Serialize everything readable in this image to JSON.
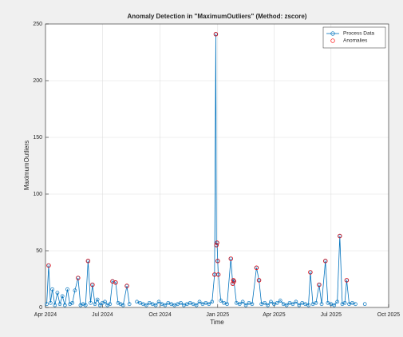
{
  "chart_data": {
    "type": "line",
    "title": "Anomaly Detection in \"MaximumOutliers\" (Method: zscore)",
    "x_label": "Time",
    "y_label": "MaximumOutliers",
    "xlim": [
      0,
      548
    ],
    "xticks": [
      {
        "value": 0,
        "label": "Apr 2024"
      },
      {
        "value": 91,
        "label": "Jul 2024"
      },
      {
        "value": 183,
        "label": "Oct 2024"
      },
      {
        "value": 275,
        "label": "Jan 2025"
      },
      {
        "value": 365,
        "label": "Apr 2025"
      },
      {
        "value": 456,
        "label": "Jul 2025"
      },
      {
        "value": 548,
        "label": "Oct 2025"
      }
    ],
    "ylim": [
      0,
      250
    ],
    "yticks": [
      0,
      50,
      100,
      150,
      200,
      250
    ],
    "grid": true,
    "legend": "northeast",
    "series": [
      {
        "name": "Process Data",
        "color": "#0072bd",
        "style": "line-marker",
        "x": [
          2,
          5,
          8,
          11,
          15,
          19,
          23,
          27,
          31,
          35,
          39,
          43,
          47,
          52,
          56,
          60,
          64,
          68,
          72,
          75,
          79,
          83,
          87,
          91,
          95,
          99,
          103,
          107,
          112,
          116,
          120,
          124,
          130,
          134,
          140,
          146,
          151,
          156,
          161,
          166,
          171,
          176,
          181,
          186,
          191,
          196,
          201,
          206,
          211,
          216,
          221,
          226,
          231,
          236,
          241,
          246,
          251,
          256,
          261,
          266,
          270,
          272,
          273,
          274,
          275,
          276,
          280,
          285,
          290,
          296,
          299,
          300,
          301,
          305,
          310,
          315,
          320,
          325,
          330,
          337,
          341,
          345,
          350,
          355,
          360,
          365,
          370,
          375,
          380,
          385,
          390,
          395,
          400,
          405,
          410,
          415,
          420,
          423,
          427,
          432,
          437,
          441,
          447,
          451,
          456,
          461,
          466,
          470,
          474,
          478,
          481,
          485,
          490,
          495,
          502,
          510
        ],
        "values": [
          3,
          37,
          4,
          16,
          2,
          13,
          3,
          10,
          2,
          16,
          3,
          4,
          15,
          26,
          2,
          3,
          2,
          41,
          4,
          20,
          3,
          7,
          2,
          4,
          5,
          2,
          3,
          23,
          22,
          4,
          3,
          2,
          19,
          3,
          null,
          5,
          4,
          3,
          2,
          4,
          3,
          2,
          5,
          3,
          2,
          4,
          3,
          2,
          3,
          4,
          2,
          3,
          4,
          3,
          2,
          5,
          3,
          4,
          3,
          5,
          29,
          241,
          55,
          57,
          41,
          29,
          6,
          4,
          3,
          43,
          21,
          24,
          23,
          4,
          3,
          5,
          2,
          4,
          3,
          35,
          24,
          3,
          4,
          2,
          5,
          3,
          4,
          6,
          3,
          2,
          4,
          3,
          5,
          2,
          4,
          3,
          2,
          31,
          3,
          4,
          20,
          3,
          41,
          4,
          3,
          2,
          5,
          63,
          3,
          4,
          24,
          3,
          4,
          3,
          null,
          3
        ]
      },
      {
        "name": "Anomalies",
        "color": "#ff0000",
        "style": "marker",
        "x": [
          5,
          52,
          68,
          75,
          107,
          112,
          130,
          270,
          272,
          273,
          274,
          275,
          276,
          296,
          299,
          300,
          301,
          337,
          341,
          423,
          437,
          447,
          470,
          481
        ],
        "values": [
          37,
          26,
          41,
          20,
          23,
          22,
          19,
          29,
          241,
          55,
          57,
          41,
          29,
          43,
          21,
          24,
          23,
          35,
          24,
          31,
          20,
          41,
          63,
          24
        ]
      }
    ]
  }
}
